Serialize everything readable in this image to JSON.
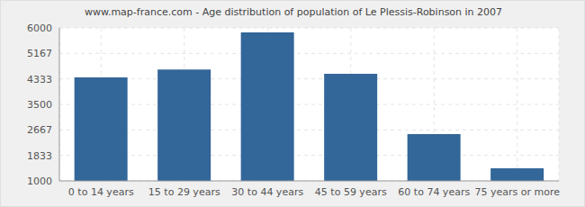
{
  "chart_data": {
    "type": "bar",
    "title": "www.map-france.com - Age distribution of population of Le Plessis-Robinson in 2007",
    "categories": [
      "0 to 14 years",
      "15 to 29 years",
      "30 to 44 years",
      "45 to 59 years",
      "60 to 74 years",
      "75 years or more"
    ],
    "values": [
      4380,
      4640,
      5850,
      4500,
      2530,
      1410
    ],
    "color": "#336699",
    "ylim": [
      1000,
      6000
    ],
    "yticks": [
      1000,
      1833,
      2667,
      3500,
      4333,
      5167,
      6000
    ],
    "grid": true
  }
}
